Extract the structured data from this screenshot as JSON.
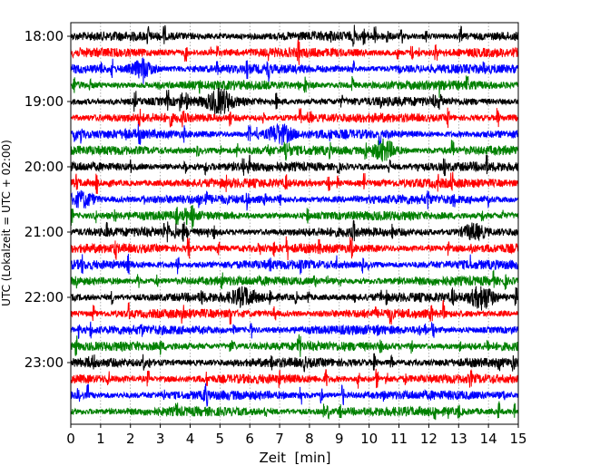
{
  "chart_data": {
    "type": "line",
    "subtype": "helicorder-seismogram",
    "xlabel": "Zeit  [min]",
    "ylabel": "UTC (Lokalzeit = UTC + 02:00)",
    "xlim": [
      0,
      15
    ],
    "x_ticks": [
      "0",
      "1",
      "2",
      "3",
      "4",
      "5",
      "6",
      "7",
      "8",
      "9",
      "10",
      "11",
      "12",
      "13",
      "14",
      "15"
    ],
    "y_tick_labels": [
      "18:00",
      "19:00",
      "20:00",
      "21:00",
      "22:00",
      "23:00"
    ],
    "minutes_per_line": 15,
    "trace_count": 24,
    "trace_colors": [
      "#000000",
      "#ff0000",
      "#0000ff",
      "#008000"
    ],
    "grid": "vertical dotted every minute",
    "events": [
      {
        "trace": 4,
        "minute": 5.0,
        "strength": 2.2
      },
      {
        "trace": 2,
        "minute": 2.4,
        "strength": 1.6
      },
      {
        "trace": 6,
        "minute": 7.0,
        "strength": 1.8
      },
      {
        "trace": 7,
        "minute": 10.5,
        "strength": 2.0
      },
      {
        "trace": 16,
        "minute": 5.8,
        "strength": 1.5
      },
      {
        "trace": 16,
        "minute": 13.8,
        "strength": 2.2
      },
      {
        "trace": 12,
        "minute": 13.5,
        "strength": 1.5
      },
      {
        "trace": 10,
        "minute": 0.4,
        "strength": 1.5
      }
    ]
  }
}
